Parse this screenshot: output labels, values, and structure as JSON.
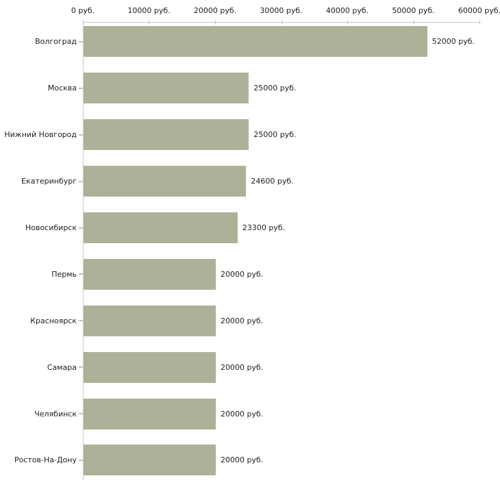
{
  "chart_data": {
    "type": "bar",
    "orientation": "horizontal",
    "title": "",
    "xlabel": "",
    "ylabel": "",
    "categories": [
      "Волгоград",
      "Москва",
      "Нижний Новгород",
      "Екатеринбург",
      "Новосибирск",
      "Пермь",
      "Красноярск",
      "Самара",
      "Челябинск",
      "Ростов-На-Дону"
    ],
    "values": [
      52000,
      25000,
      25000,
      24600,
      23300,
      20000,
      20000,
      20000,
      20000,
      20000
    ],
    "value_labels": [
      "52000 руб.",
      "25000 руб.",
      "25000 руб.",
      "24600 руб.",
      "23300 руб.",
      "20000 руб.",
      "20000 руб.",
      "20000 руб.",
      "20000 руб.",
      "20000 руб."
    ],
    "xlim": [
      0,
      60000
    ],
    "x_ticks": [
      0,
      10000,
      20000,
      30000,
      40000,
      50000,
      60000
    ],
    "x_tick_labels": [
      "0 руб.",
      "10000 руб.",
      "20000 руб.",
      "30000 руб.",
      "40000 руб.",
      "50000 руб.",
      "60000 руб."
    ],
    "grid": false,
    "legend": false,
    "axis_position": "top",
    "bar_color": "#acb298",
    "axis_line_color": "#ccccc4",
    "tick_mark_color": "#cdc6ab",
    "text_color": "#1d1d1d",
    "background_color": "#ffffff"
  }
}
